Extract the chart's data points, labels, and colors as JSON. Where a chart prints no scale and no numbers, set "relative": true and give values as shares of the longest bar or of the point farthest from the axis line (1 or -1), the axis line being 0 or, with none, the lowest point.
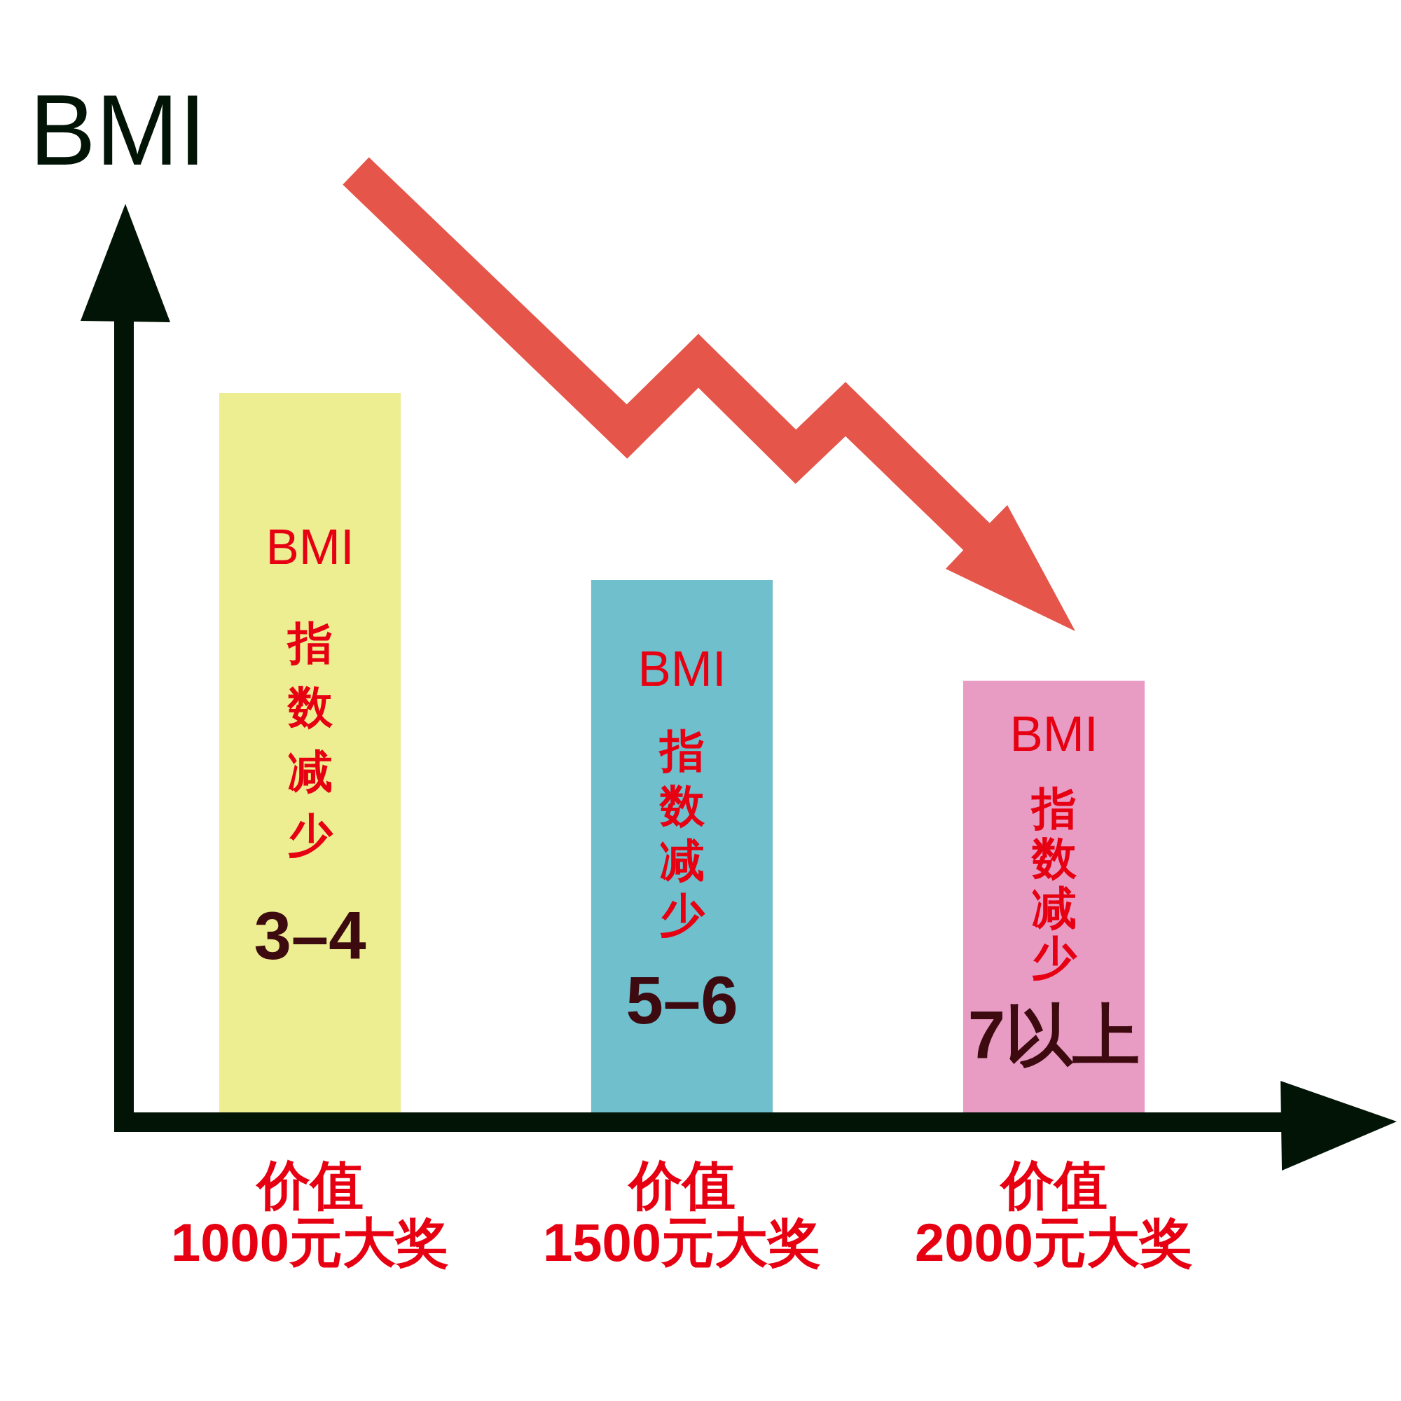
{
  "chart_data": {
    "type": "bar",
    "relative": true,
    "ylabel": "BMI",
    "categories": [
      "价值\n1000元大奖",
      "价值\n1500元大奖",
      "价值\n2000元大奖"
    ],
    "values": [
      1,
      0.74,
      0.6
    ],
    "colors": [
      "#ecee91",
      "#6fbfcd",
      "#e89cc4"
    ],
    "annotations": [
      "BMI 指数减少 3–4",
      "BMI 指数减少 5–6",
      "BMI 指数减少 7以上"
    ]
  }
}
